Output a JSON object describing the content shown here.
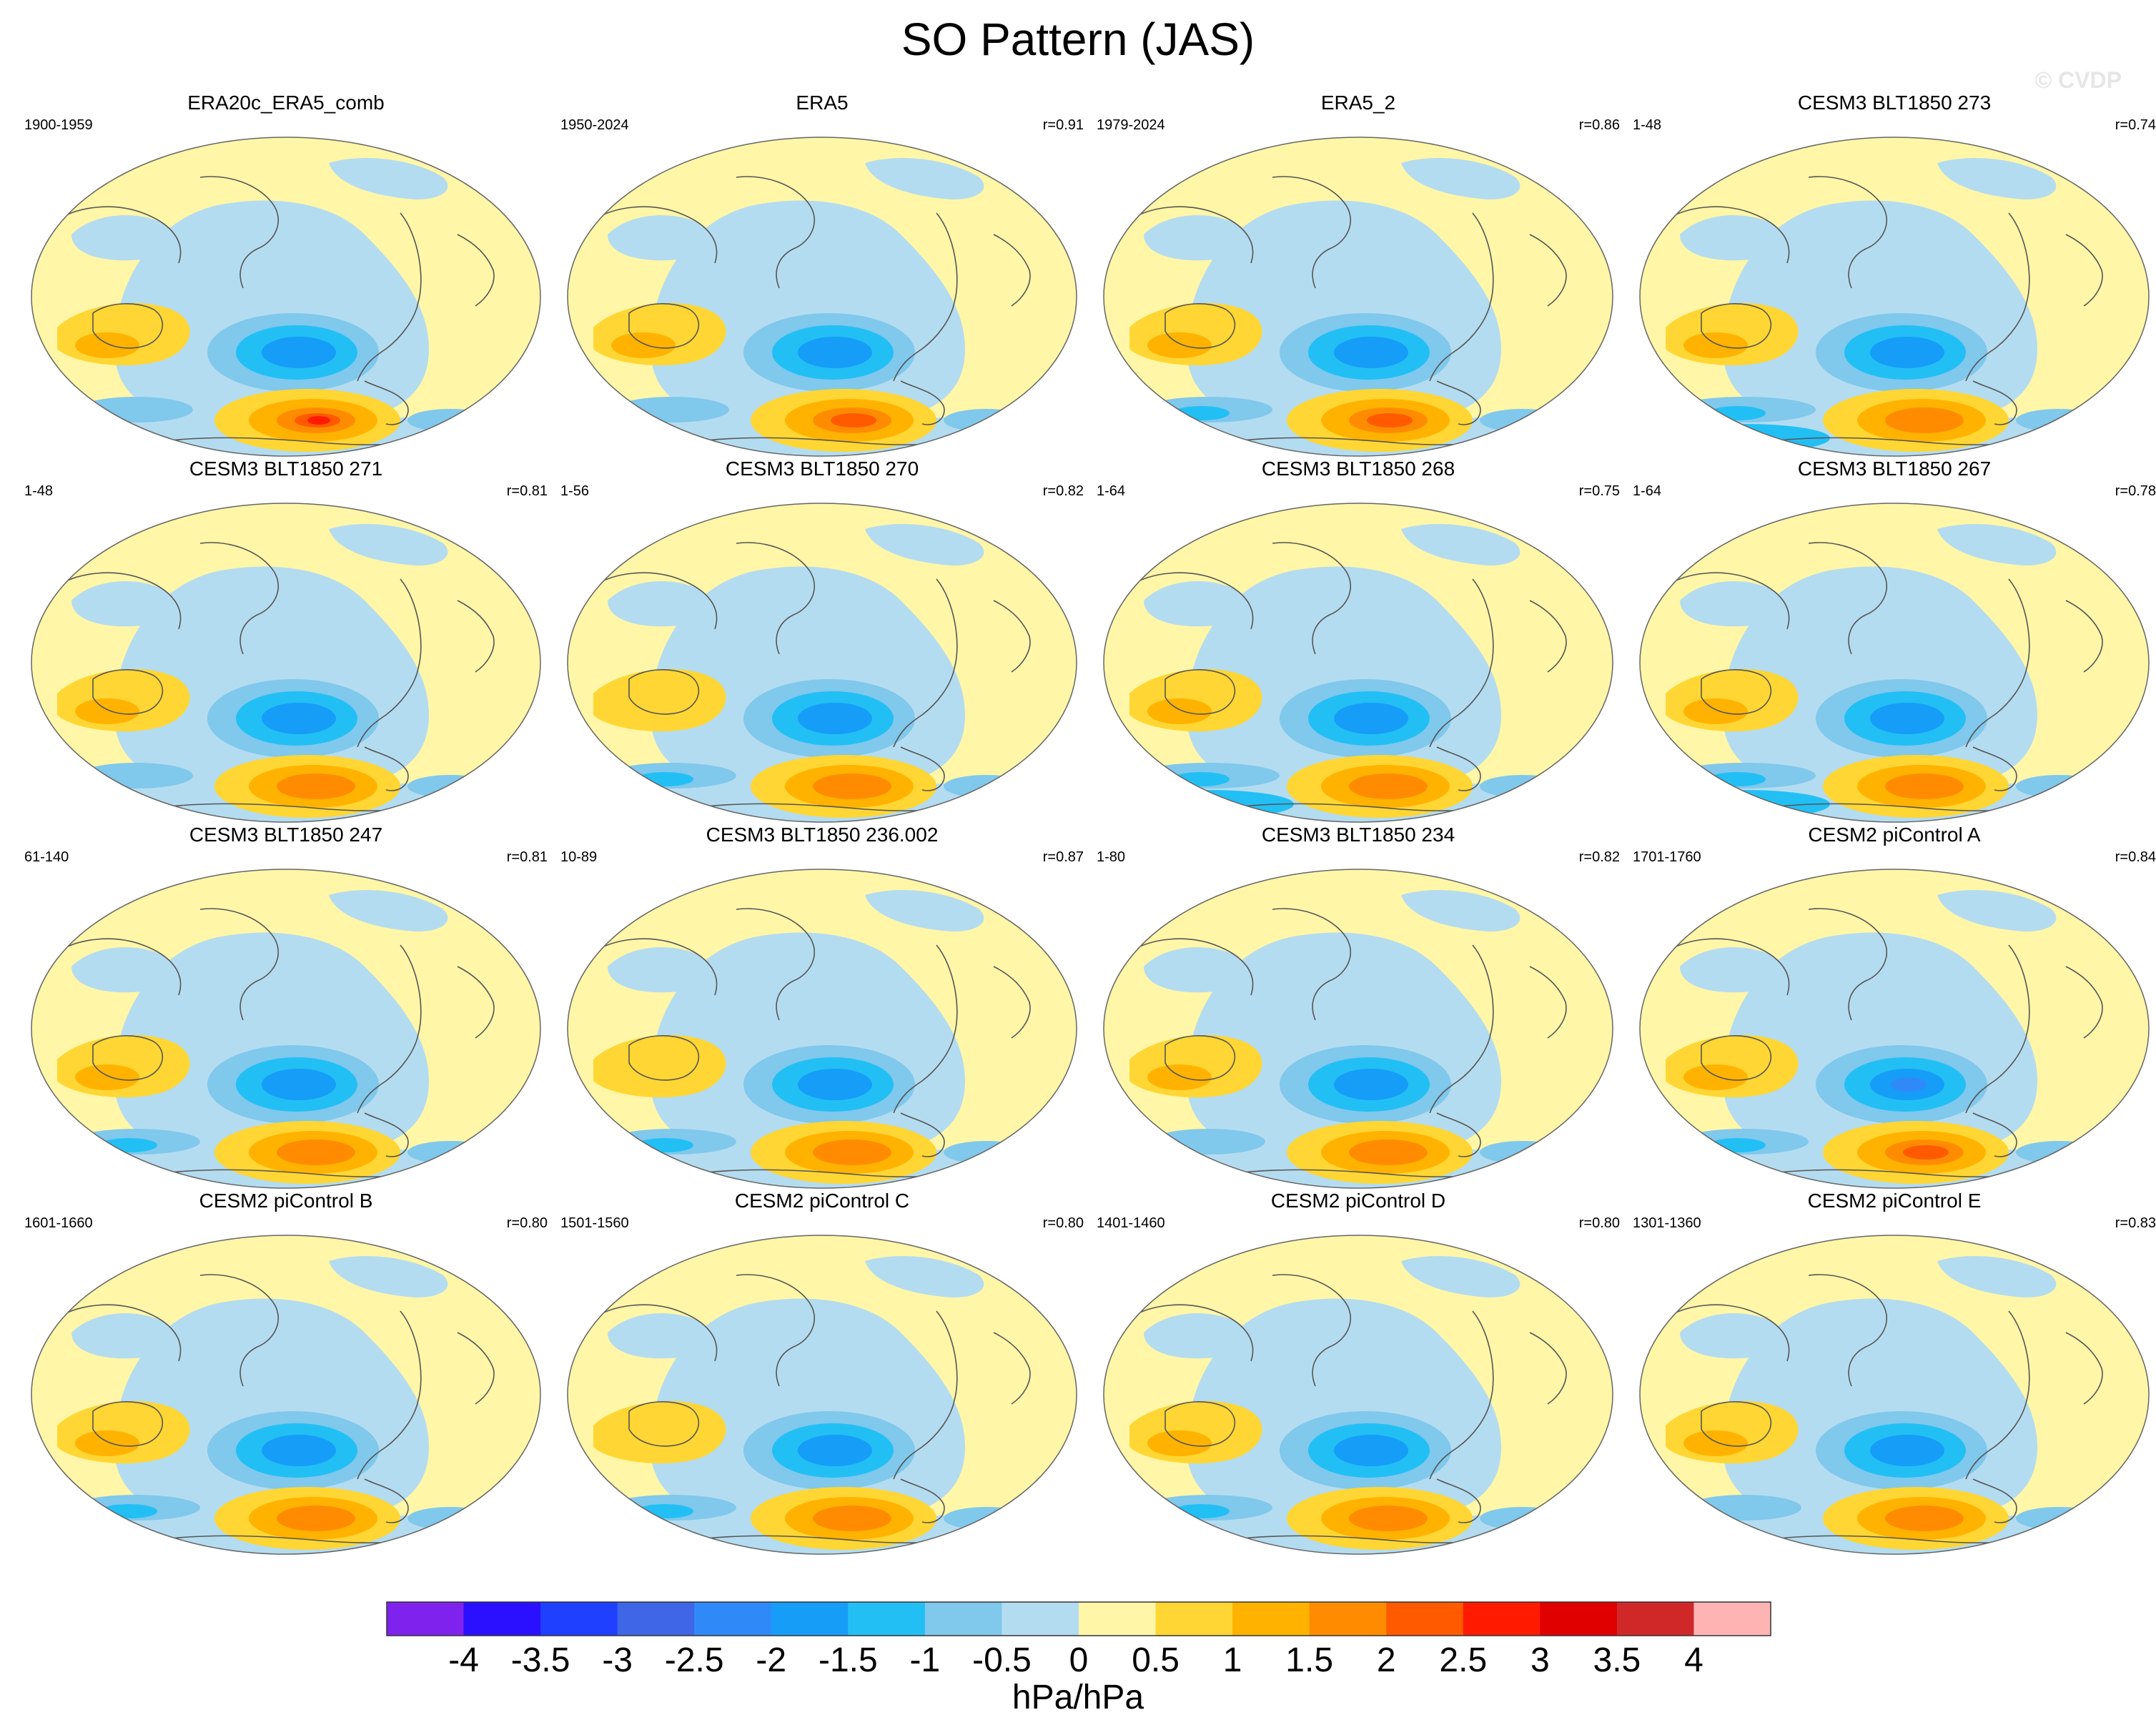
{
  "title": "SO Pattern (JAS)",
  "watermark": "© CVDP",
  "chart_data": {
    "type": "heatmap",
    "title": "SO Pattern (JAS)",
    "panels": [
      {
        "title": "ERA20c_ERA5_comb",
        "years": "1900-1959",
        "r": ""
      },
      {
        "title": "ERA5",
        "years": "1950-2024",
        "r": "r=0.91"
      },
      {
        "title": "ERA5_2",
        "years": "1979-2024",
        "r": "r=0.86"
      },
      {
        "title": "CESM3 BLT1850 273",
        "years": "1-48",
        "r": "r=0.74"
      },
      {
        "title": "CESM3 BLT1850 271",
        "years": "1-48",
        "r": "r=0.81"
      },
      {
        "title": "CESM3 BLT1850 270",
        "years": "1-56",
        "r": "r=0.82"
      },
      {
        "title": "CESM3 BLT1850 268",
        "years": "1-64",
        "r": "r=0.75"
      },
      {
        "title": "CESM3 BLT1850 267",
        "years": "1-64",
        "r": "r=0.78"
      },
      {
        "title": "CESM3 BLT1850 247",
        "years": "61-140",
        "r": "r=0.81"
      },
      {
        "title": "CESM3 BLT1850 236.002",
        "years": "10-89",
        "r": "r=0.87"
      },
      {
        "title": "CESM3 BLT1850 234",
        "years": "1-80",
        "r": "r=0.82"
      },
      {
        "title": "CESM2 piControl A",
        "years": "1701-1760",
        "r": "r=0.84"
      },
      {
        "title": "CESM2 piControl B",
        "years": "1601-1660",
        "r": "r=0.80"
      },
      {
        "title": "CESM2 piControl C",
        "years": "1501-1560",
        "r": "r=0.80"
      },
      {
        "title": "CESM2 piControl D",
        "years": "1401-1460",
        "r": "r=0.80"
      },
      {
        "title": "CESM2 piControl E",
        "years": "1301-1360",
        "r": "r=0.83"
      }
    ],
    "colorbar": {
      "unit": "hPa/hPa",
      "levels": [
        "-4",
        "-3.5",
        "-3",
        "-2.5",
        "-2",
        "-1.5",
        "-1",
        "-0.5",
        "0",
        "0.5",
        "1",
        "1.5",
        "2",
        "2.5",
        "3",
        "3.5",
        "4"
      ],
      "colors": [
        "#7f22ee",
        "#2a10ff",
        "#1f40ff",
        "#3f66e6",
        "#2f8af8",
        "#159df8",
        "#22bff5",
        "#80c8ec",
        "#b4dcf0",
        "#fff6a8",
        "#ffd633",
        "#ffb300",
        "#ff8c00",
        "#ff5a00",
        "#ff1a00",
        "#e00000",
        "#d02828",
        "#ffb4b4"
      ]
    }
  }
}
